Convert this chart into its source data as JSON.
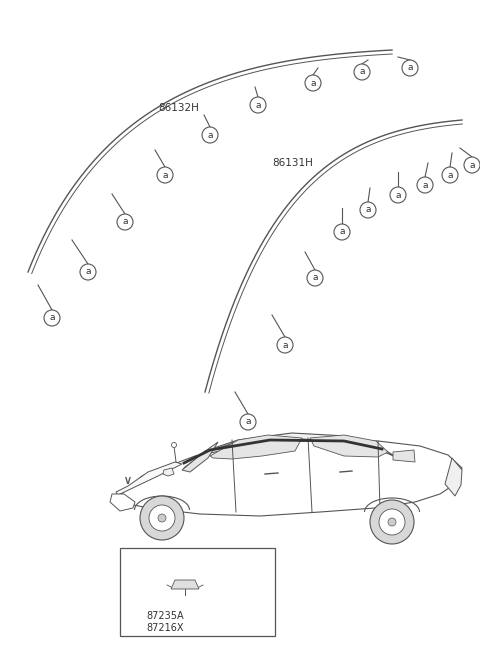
{
  "bg_color": "#ffffff",
  "label_86132H": "86132H",
  "label_86131H": "86131H",
  "label_87235A": "87235A",
  "label_87216X": "87216X",
  "label_a": "a",
  "fig_width": 4.8,
  "fig_height": 6.55,
  "line_color": "#555555",
  "text_color": "#333333"
}
